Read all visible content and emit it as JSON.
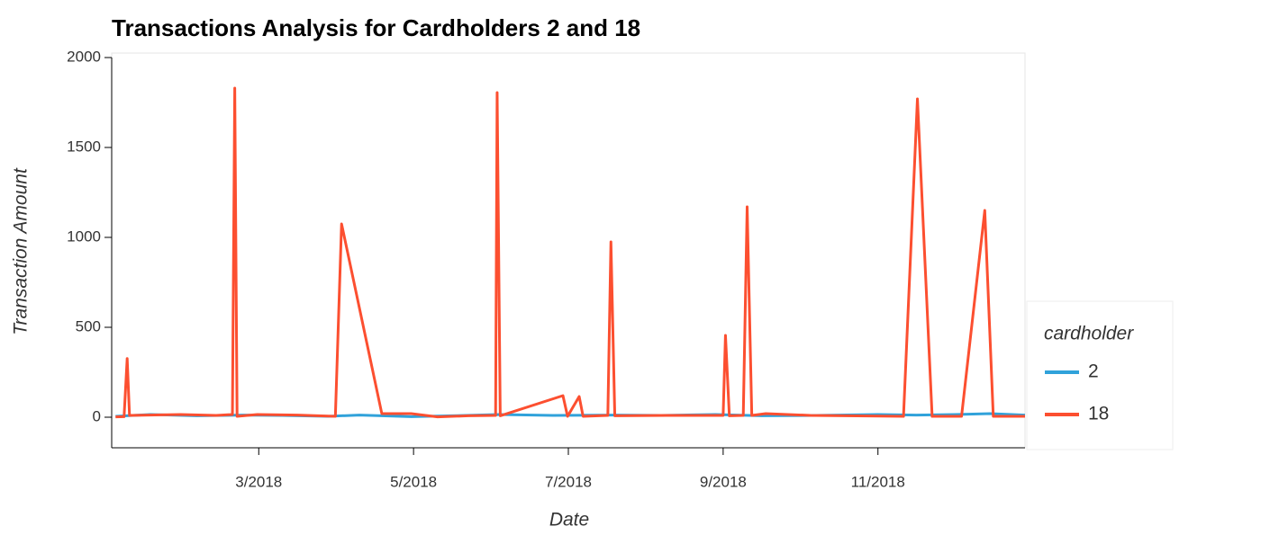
{
  "chart_data": {
    "type": "line",
    "title": "Transactions Analysis for Cardholders 2 and 18",
    "x_label": "Date",
    "y_label": "Transaction Amount",
    "legend_title": "cardholder",
    "legend_position": "right",
    "xlim": [
      1.1,
      12.9
    ],
    "ylim": [
      -170,
      2020
    ],
    "xticks": [
      {
        "value": 3,
        "label": "3/2018"
      },
      {
        "value": 5,
        "label": "5/2018"
      },
      {
        "value": 7,
        "label": "7/2018"
      },
      {
        "value": 9,
        "label": "9/2018"
      },
      {
        "value": 11,
        "label": "11/2018"
      }
    ],
    "yticks": [
      0,
      500,
      1000,
      1500,
      2000
    ],
    "series": [
      {
        "name": "2",
        "color": "#30a2da",
        "x": [
          1.15,
          1.6,
          2.2,
          2.8,
          3.3,
          3.9,
          4.3,
          4.97,
          5.5,
          6.1,
          6.8,
          7.6,
          8.2,
          8.9,
          9.5,
          10.2,
          11.0,
          11.5,
          12.0,
          12.45,
          12.9
        ],
        "values": [
          5,
          15,
          8,
          12,
          10,
          5,
          12,
          3,
          8,
          15,
          10,
          12,
          10,
          15,
          8,
          10,
          15,
          12,
          15,
          20,
          12
        ]
      },
      {
        "name": "18",
        "color": "#fc4f30",
        "x": [
          1.15,
          1.26,
          1.3,
          1.33,
          1.99,
          2.45,
          2.66,
          2.69,
          2.72,
          2.98,
          3.5,
          3.99,
          4.07,
          4.59,
          4.97,
          5.31,
          5.71,
          6.06,
          6.08,
          6.12,
          6.93,
          6.99,
          7.14,
          7.19,
          7.51,
          7.55,
          7.6,
          8.27,
          9.0,
          9.03,
          9.08,
          9.26,
          9.31,
          9.37,
          9.55,
          10.13,
          11.33,
          11.51,
          11.7,
          12.08,
          12.38,
          12.49,
          12.9
        ],
        "values": [
          2,
          3,
          326,
          10,
          15,
          10,
          15,
          1830,
          5,
          15,
          12,
          5,
          1075,
          20,
          20,
          2,
          8,
          10,
          1805,
          8,
          120,
          5,
          115,
          5,
          10,
          975,
          8,
          10,
          10,
          455,
          8,
          10,
          1170,
          10,
          20,
          10,
          5,
          1770,
          5,
          5,
          1150,
          5,
          5
        ]
      }
    ]
  }
}
